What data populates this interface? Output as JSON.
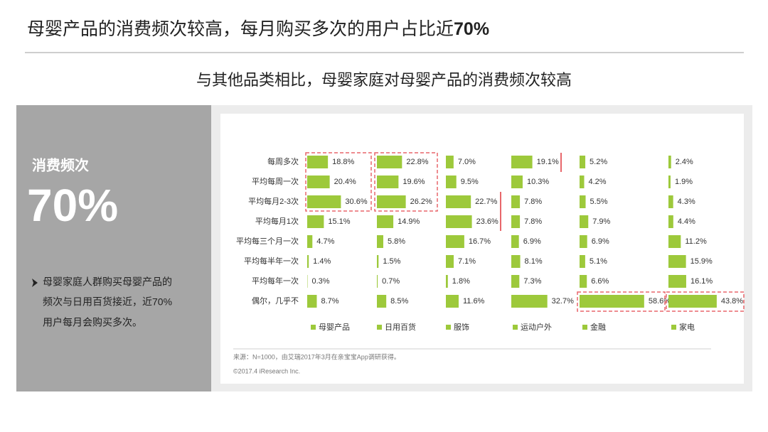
{
  "chart_data": {
    "type": "bar",
    "title": "母婴产品的消费频次较高，每月购买多次的用户占比近",
    "title_emphasis": "70%",
    "subtitle": "与其他品类相比，母婴家庭对母婴产品的消费频次较高",
    "categories": [
      "每周多次",
      "平均每周一次",
      "平均每月2-3次",
      "平均每月1次",
      "平均每三个月一次",
      "平均每半年一次",
      "平均每年一次",
      "偶尔，几乎不"
    ],
    "series": [
      {
        "name": "母婴产品",
        "color": "#9dc93b",
        "values": [
          18.8,
          20.4,
          30.6,
          15.1,
          4.7,
          1.4,
          0.3,
          8.7
        ],
        "value_labels": [
          "18.8%",
          "20.4%",
          "30.6%",
          "15.1%",
          "4.7%",
          "1.4%",
          "0.3%",
          "8.7%"
        ]
      },
      {
        "name": "日用百货",
        "color": "#9dc93b",
        "values": [
          22.8,
          19.6,
          26.2,
          14.9,
          5.8,
          1.5,
          0.7,
          8.5
        ],
        "value_labels": [
          "22.8%",
          "19.6%",
          "26.2%",
          "14.9%",
          "5.8%",
          "1.5%",
          "0.7%",
          "8.5%"
        ]
      },
      {
        "name": "服饰",
        "color": "#9dc93b",
        "values": [
          7.0,
          9.5,
          22.7,
          23.6,
          16.7,
          7.1,
          1.8,
          11.6
        ],
        "value_labels": [
          "7.0%",
          "9.5%",
          "22.7%",
          "23.6%",
          "16.7%",
          "7.1%",
          "1.8%",
          "11.6%"
        ]
      },
      {
        "name": "运动户外",
        "color": "#9dc93b",
        "values": [
          19.1,
          10.3,
          7.8,
          7.8,
          6.9,
          8.1,
          7.3,
          32.7
        ],
        "value_labels": [
          "19.1%",
          "10.3%",
          "7.8%",
          "7.8%",
          "6.9%",
          "8.1%",
          "7.3%",
          "32.7%"
        ]
      },
      {
        "name": "金融",
        "color": "#9dc93b",
        "values": [
          5.2,
          4.2,
          5.5,
          7.9,
          6.9,
          5.1,
          6.6,
          58.6
        ],
        "value_labels": [
          "5.2%",
          "4.2%",
          "5.5%",
          "7.9%",
          "6.9%",
          "5.1%",
          "6.6%",
          "58.6%"
        ]
      },
      {
        "name": "家电",
        "color": "#9dc93b",
        "values": [
          2.4,
          1.9,
          4.3,
          4.4,
          11.2,
          15.9,
          16.1,
          43.8
        ],
        "value_labels": [
          "2.4%",
          "1.9%",
          "4.3%",
          "4.4%",
          "11.2%",
          "15.9%",
          "16.1%",
          "43.8%"
        ]
      }
    ],
    "source": "来源：N=1000，由艾瑞2017年3月在亲宝宝App调研获得。",
    "copyright": "©2017.4 iResearch Inc."
  },
  "sidebar": {
    "label": "消费频次",
    "value": "70%",
    "note": [
      "母婴家庭人群购买母婴产品的",
      "频次与日用百货接近，近70%",
      "用户每月会购买多次。"
    ]
  }
}
